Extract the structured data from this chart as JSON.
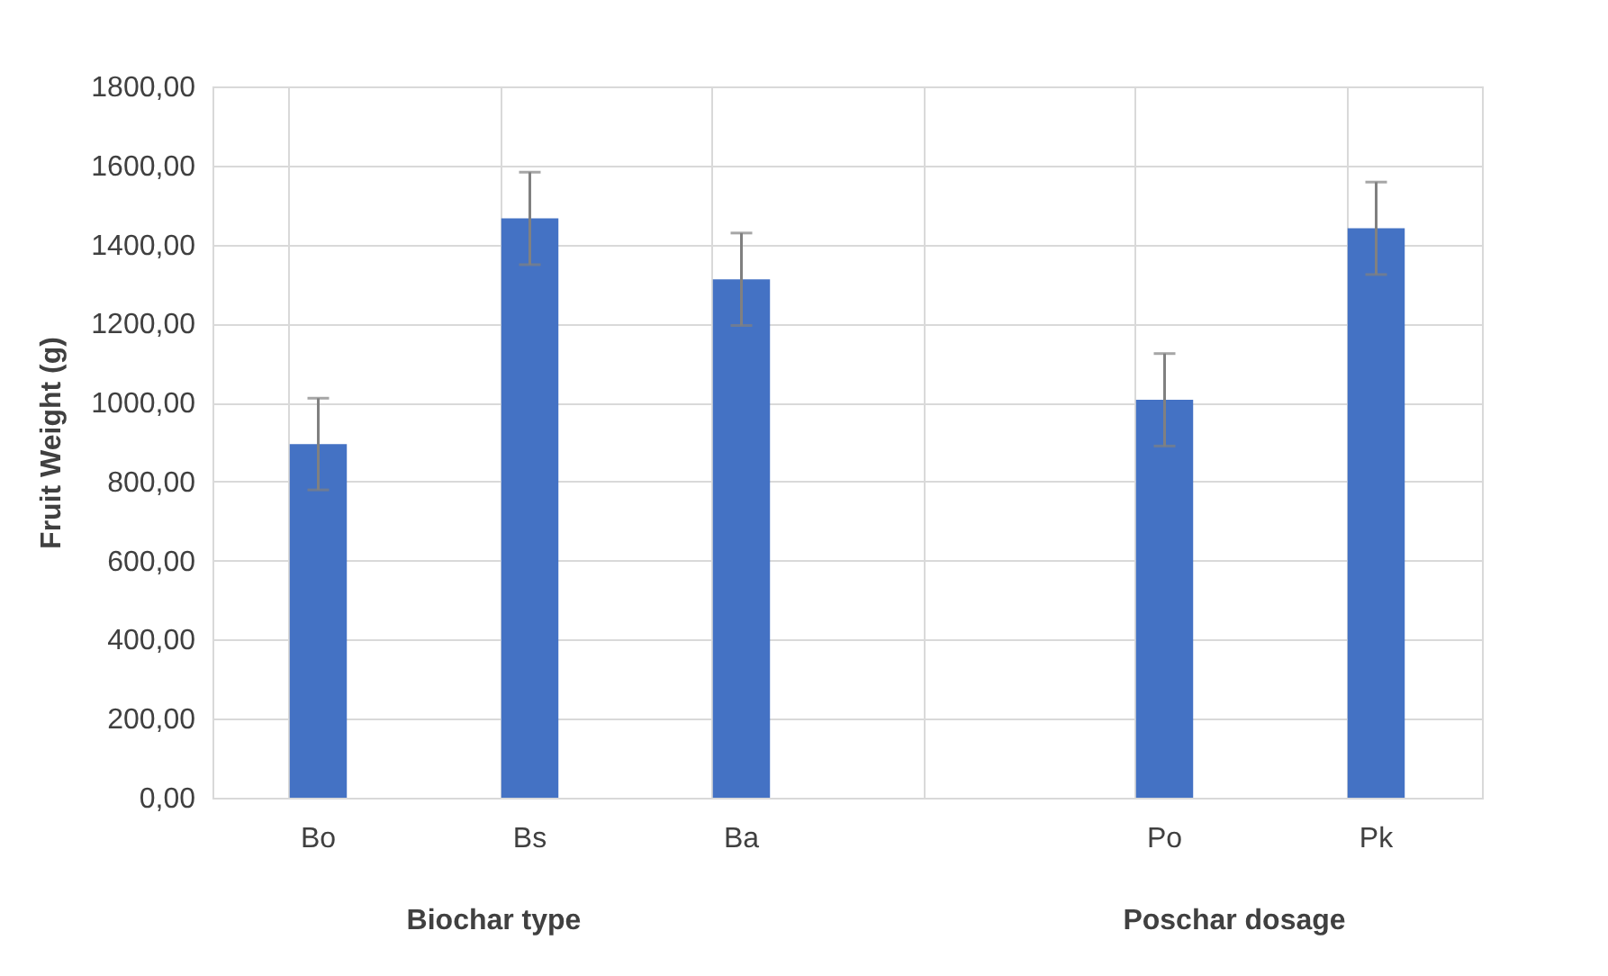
{
  "chart_data": {
    "type": "bar",
    "ylabel": "Fruit Weight (g)",
    "categories": [
      "Bo",
      "Bs",
      "Ba",
      null,
      "Po",
      "Pk"
    ],
    "values": [
      895,
      1466,
      1312,
      null,
      1007,
      1441
    ],
    "errors": [
      116,
      117,
      117,
      null,
      117,
      117
    ],
    "color": "#4472c4",
    "ylim": [
      0,
      1800
    ],
    "yticks": [
      {
        "value": 0,
        "label": "0,00"
      },
      {
        "value": 200,
        "label": "200,00"
      },
      {
        "value": 400,
        "label": "400,00"
      },
      {
        "value": 600,
        "label": "600,00"
      },
      {
        "value": 800,
        "label": "800,00"
      },
      {
        "value": 1000,
        "label": "1000,00"
      },
      {
        "value": 1200,
        "label": "1200,00"
      },
      {
        "value": 1400,
        "label": "1400,00"
      },
      {
        "value": 1600,
        "label": "1600,00"
      },
      {
        "value": 1800,
        "label": "1800,00"
      }
    ],
    "grid": true,
    "annotations": [
      "Biochar type",
      "Poschar dosage"
    ]
  }
}
